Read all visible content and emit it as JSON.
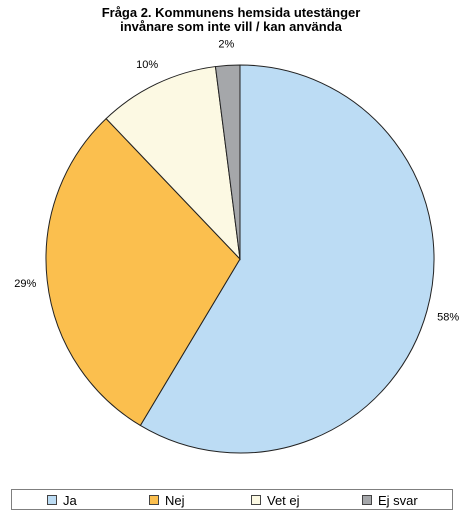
{
  "chart_data": {
    "type": "pie",
    "title_lines": [
      "Fråga 2. Kommunens hemsida utestänger",
      "invånare som inte vill / kan använda"
    ],
    "series": [
      {
        "name": "Ja",
        "value": 58,
        "label": "58%",
        "color": "#bcdcf4"
      },
      {
        "name": "Nej",
        "value": 29,
        "label": "29%",
        "color": "#fbbf4e"
      },
      {
        "name": "Vet ej",
        "value": 10,
        "label": "10%",
        "color": "#fcf9e3"
      },
      {
        "name": "Ej svar",
        "value": 2,
        "label": "2%",
        "color": "#a5a7aa"
      }
    ],
    "start": "top",
    "direction": "clockwise",
    "legend_position": "bottom"
  }
}
